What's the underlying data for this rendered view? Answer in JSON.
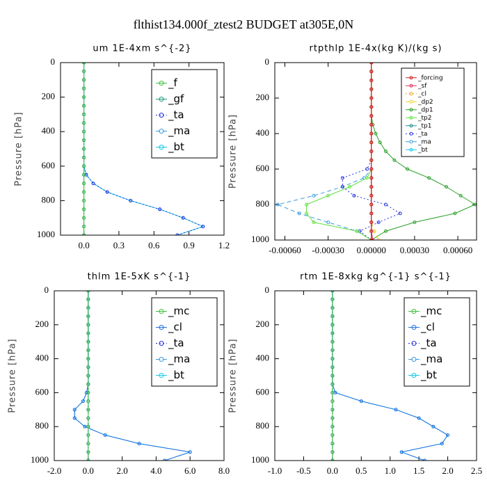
{
  "title": "flthist134.000f_ztest2  BUDGET at305E,0N",
  "chart_data": [
    {
      "type": "line",
      "title": "um  1E-4xm s^{-2}",
      "ylabel": "Pressure [hPa]",
      "y": [
        0,
        50,
        100,
        150,
        200,
        250,
        300,
        350,
        400,
        450,
        500,
        550,
        600,
        650,
        700,
        750,
        800,
        850,
        900,
        950,
        1000
      ],
      "ylim": [
        0,
        1000
      ],
      "y_inverted": true,
      "yticks": [
        0,
        200,
        400,
        600,
        800,
        1000
      ],
      "xlim": [
        -0.2,
        1.2
      ],
      "xticks": [
        {
          "value": 0,
          "label": "0.0"
        },
        0.3,
        0.6,
        0.9,
        1.2
      ],
      "legend": "upper right",
      "series": [
        {
          "name": "_f",
          "color": "#3cbf3c",
          "values": [
            0,
            0,
            0,
            0,
            0,
            0,
            0,
            0,
            0,
            0,
            0,
            0,
            0,
            0,
            0,
            0,
            0,
            0,
            0,
            0,
            0
          ]
        },
        {
          "name": "_gf",
          "color": "#1a9a7a",
          "values": [
            0,
            0,
            0,
            0,
            0,
            0,
            0,
            0,
            0,
            0,
            0,
            0,
            0,
            0,
            0,
            0,
            0,
            0,
            0,
            0,
            0
          ]
        },
        {
          "name": "_ta",
          "color": "#2030e0",
          "values": [
            0,
            0,
            0,
            0,
            0,
            0,
            0,
            0,
            0,
            0,
            0,
            0,
            0,
            0.02,
            0.08,
            0.2,
            0.4,
            0.65,
            0.85,
            1.02,
            0.8
          ]
        },
        {
          "name": "_ma",
          "color": "#3a9ae0",
          "values": [
            0,
            0,
            0,
            0,
            0,
            0,
            0,
            0,
            0,
            0,
            0,
            0,
            0,
            0,
            0,
            0,
            0,
            0,
            0,
            0,
            0
          ]
        },
        {
          "name": "_bt",
          "color": "#10c8e8",
          "values": [
            0,
            0,
            0,
            0,
            0,
            0,
            0,
            0,
            0,
            0,
            0,
            0,
            0,
            0.02,
            0.08,
            0.2,
            0.4,
            0.65,
            0.85,
            1.02,
            0.8
          ]
        }
      ]
    },
    {
      "type": "line",
      "title": "rtpthlp  1E-4x(kg K)/(kg s)",
      "ylabel": "Pressure [hPa]",
      "y": [
        0,
        50,
        100,
        150,
        200,
        250,
        300,
        350,
        400,
        450,
        500,
        550,
        600,
        650,
        700,
        750,
        800,
        850,
        900,
        950,
        1000
      ],
      "ylim": [
        0,
        1000
      ],
      "y_inverted": true,
      "yticks": [
        0,
        200,
        400,
        600,
        800,
        1000
      ],
      "xlim": [
        -0.00067,
        0.00073
      ],
      "xticks": [
        {
          "value": -0.0006,
          "label": "-0.00060"
        },
        {
          "value": -0.0003,
          "label": "-0.00030"
        },
        {
          "value": 0,
          "label": "0.00000"
        },
        {
          "value": 0.0003,
          "label": "0.00030"
        },
        {
          "value": 0.0006,
          "label": "0.00060"
        }
      ],
      "legend": "upper right",
      "series": [
        {
          "name": "_forcing",
          "color": "#d02020",
          "values": [
            0,
            0,
            0,
            0,
            0,
            0,
            0,
            0,
            0,
            0,
            0,
            0,
            0,
            0,
            0,
            0,
            0,
            0,
            0,
            0,
            0
          ]
        },
        {
          "name": "_sf",
          "color": "#e03060",
          "values": [
            0,
            0,
            0,
            0,
            0,
            0,
            0,
            0,
            0,
            0,
            0,
            0,
            0,
            0,
            0,
            0,
            0,
            0,
            0,
            0,
            1e-05
          ]
        },
        {
          "name": "_cl",
          "color": "#f0a020",
          "values": [
            0,
            0,
            0,
            0,
            0,
            0,
            0,
            0,
            0,
            0,
            0,
            0,
            0,
            0,
            0,
            0,
            0,
            0,
            0,
            0,
            0
          ]
        },
        {
          "name": "_dp2",
          "color": "#e8d020",
          "values": [
            0,
            0,
            0,
            0,
            0,
            0,
            0,
            0,
            0,
            0,
            0,
            0,
            0,
            0,
            0,
            0,
            0,
            0,
            0,
            2e-05,
            5e-05
          ]
        },
        {
          "name": "_dp1",
          "color": "#28a028",
          "values": [
            0,
            0,
            0,
            0,
            0,
            0,
            0,
            1e-05,
            3e-05,
            6e-05,
            0.0001,
            0.00016,
            0.00025,
            0.0004,
            0.00052,
            0.00062,
            0.00072,
            0.00058,
            0.0003,
            0.0001,
            0
          ]
        },
        {
          "name": "_tp2",
          "color": "#60e040",
          "values": [
            0,
            0,
            0,
            0,
            0,
            0,
            0,
            0,
            0,
            0,
            0,
            0,
            0,
            -3e-05,
            -0.00015,
            -0.0003,
            -0.00045,
            -0.00045,
            -0.0004,
            -0.0001,
            0
          ]
        },
        {
          "name": "_tp1",
          "color": "#209090",
          "values": [
            0,
            0,
            0,
            0,
            0,
            0,
            0,
            0,
            0,
            0,
            0,
            0,
            0,
            0,
            0,
            0,
            0,
            0,
            0,
            0,
            0
          ]
        },
        {
          "name": "_ta",
          "color": "#2030e0",
          "values": [
            0,
            0,
            0,
            0,
            0,
            0,
            0,
            0,
            0,
            0,
            0,
            0,
            -3e-05,
            -0.0002,
            -0.0002,
            -0.00012,
            0.0001,
            0.0002,
            5e-05,
            -8e-05,
            0
          ]
        },
        {
          "name": "_ma",
          "color": "#3a9ae0",
          "values": [
            0,
            0,
            0,
            0,
            0,
            0,
            0,
            0,
            0,
            0,
            0,
            0,
            0,
            -5e-05,
            -0.0002,
            -0.0004,
            -0.00065,
            -0.0005,
            -0.0003,
            -0.0001,
            0
          ]
        },
        {
          "name": "_bt",
          "color": "#10c8e8",
          "values": [
            0,
            0,
            0,
            0,
            0,
            0,
            0,
            0,
            0,
            0,
            0,
            0,
            0,
            0,
            0,
            0,
            0,
            0,
            0,
            0,
            0
          ]
        }
      ]
    },
    {
      "type": "line",
      "title": "thlm  1E-5xK s^{-1}",
      "ylabel": "Pressure [hPa]",
      "y": [
        0,
        50,
        100,
        150,
        200,
        250,
        300,
        350,
        400,
        450,
        500,
        550,
        600,
        650,
        700,
        750,
        800,
        850,
        900,
        950,
        1000
      ],
      "ylim": [
        0,
        1000
      ],
      "y_inverted": true,
      "yticks": [
        0,
        200,
        400,
        600,
        800,
        1000
      ],
      "xlim": [
        -2,
        8
      ],
      "xticks": [
        {
          "value": -2,
          "label": "-2.0"
        },
        {
          "value": 0,
          "label": "0.0"
        },
        {
          "value": 2,
          "label": "2.0"
        },
        {
          "value": 4,
          "label": "4.0"
        },
        {
          "value": 6,
          "label": "6.0"
        },
        {
          "value": 8,
          "label": "8.0"
        }
      ],
      "legend": "upper right",
      "series": [
        {
          "name": "_mc",
          "color": "#3cbf3c",
          "values": [
            0,
            0,
            0,
            0,
            0,
            0,
            0,
            0,
            0,
            0,
            0,
            0,
            0,
            0,
            0,
            0,
            0,
            0,
            0,
            0,
            0
          ]
        },
        {
          "name": "_cl",
          "color": "#2070e0",
          "values": [
            0,
            0,
            0,
            0,
            0,
            0,
            0,
            0,
            0,
            0,
            0,
            0,
            -0.1,
            -0.3,
            -0.8,
            -0.8,
            -0.2,
            1.0,
            3.0,
            6.0,
            4.5
          ]
        },
        {
          "name": "_ta",
          "color": "#2030e0",
          "values": [
            0,
            0,
            0,
            0,
            0,
            0,
            0,
            0,
            0,
            0,
            0,
            0,
            0,
            0,
            0,
            0,
            0,
            0,
            0,
            0,
            0
          ]
        },
        {
          "name": "_ma",
          "color": "#3a9ae0",
          "values": [
            0,
            0,
            0,
            0,
            0,
            0,
            0,
            0,
            0,
            0,
            0,
            0,
            0,
            0,
            0,
            0,
            0,
            0,
            0,
            0,
            0
          ]
        },
        {
          "name": "_bt",
          "color": "#10c8e8",
          "values": [
            0,
            0,
            0,
            0,
            0,
            0,
            0,
            0,
            0,
            0,
            0,
            0,
            -0.1,
            -0.3,
            -0.8,
            -0.8,
            -0.2,
            1.0,
            3.0,
            6.0,
            4.5
          ]
        }
      ]
    },
    {
      "type": "line",
      "title": "rtm  1E-8xkg kg^{-1} s^{-1}",
      "ylabel": "Pressure [hPa]",
      "y": [
        0,
        50,
        100,
        150,
        200,
        250,
        300,
        350,
        400,
        450,
        500,
        550,
        600,
        650,
        700,
        750,
        800,
        850,
        900,
        950,
        1000
      ],
      "ylim": [
        0,
        1000
      ],
      "y_inverted": true,
      "yticks": [
        0,
        200,
        400,
        600,
        800,
        1000
      ],
      "xlim": [
        -1,
        2.5
      ],
      "xticks": [
        {
          "value": -1,
          "label": "-1.0"
        },
        {
          "value": -0.5,
          "label": "-0.5"
        },
        {
          "value": 0,
          "label": "0.0"
        },
        0.5,
        {
          "value": 1,
          "label": "1.0"
        },
        1.5,
        {
          "value": 2,
          "label": "2.0"
        },
        2.5
      ],
      "legend": "upper right",
      "series": [
        {
          "name": "_mc",
          "color": "#3cbf3c",
          "values": [
            0,
            0,
            0,
            0,
            0,
            0,
            0,
            0,
            0,
            0,
            0,
            0,
            0,
            0,
            0,
            0,
            0,
            0,
            0,
            0,
            0
          ]
        },
        {
          "name": "_cl",
          "color": "#2070e0",
          "values": [
            0,
            0,
            0,
            0,
            0,
            0,
            0,
            0,
            0,
            0,
            0,
            0,
            0.05,
            0.5,
            1.1,
            1.5,
            1.75,
            2.0,
            1.9,
            1.2,
            1.6
          ]
        },
        {
          "name": "_ta",
          "color": "#2030e0",
          "values": [
            0,
            0,
            0,
            0,
            0,
            0,
            0,
            0,
            0,
            0,
            0,
            0,
            0,
            0,
            0,
            0,
            0,
            0,
            0,
            0,
            0
          ]
        },
        {
          "name": "_ma",
          "color": "#3a9ae0",
          "values": [
            0,
            0,
            0,
            0,
            0,
            0,
            0,
            0,
            0,
            0,
            0,
            0,
            0,
            0,
            0,
            0,
            0,
            0,
            0,
            0,
            0
          ]
        },
        {
          "name": "_bt",
          "color": "#10c8e8",
          "values": [
            0,
            0,
            0,
            0,
            0,
            0,
            0,
            0,
            0,
            0,
            0,
            0,
            0.05,
            0.5,
            1.1,
            1.5,
            1.75,
            2.0,
            1.9,
            1.2,
            1.6
          ]
        }
      ]
    }
  ]
}
